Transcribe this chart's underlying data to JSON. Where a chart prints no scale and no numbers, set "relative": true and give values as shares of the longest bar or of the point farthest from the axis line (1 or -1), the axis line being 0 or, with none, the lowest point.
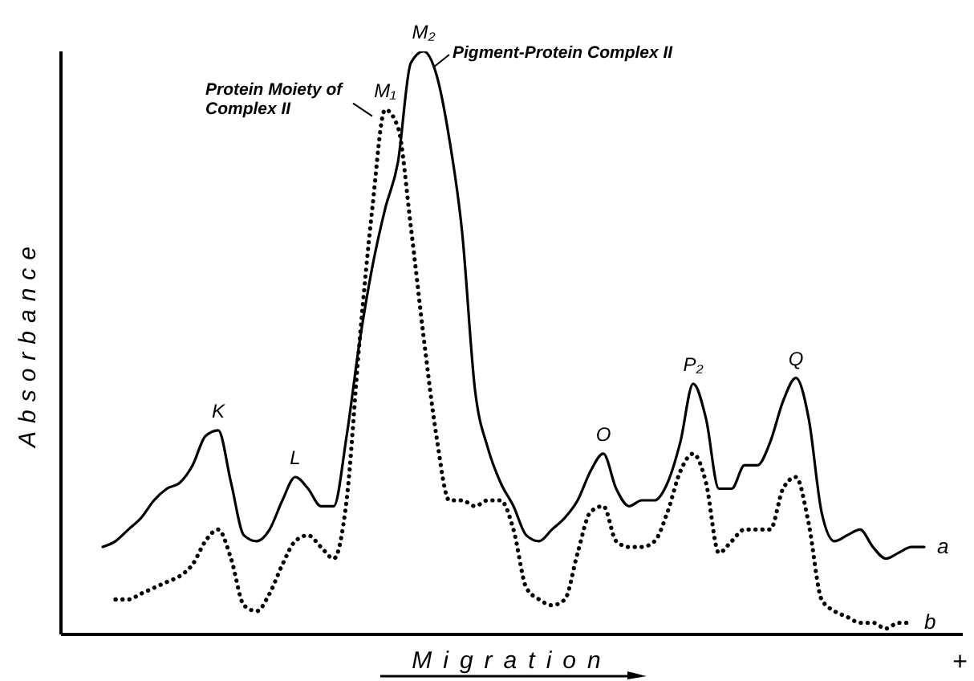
{
  "chart_data": {
    "type": "line",
    "relative": true,
    "xlabel": "Migration",
    "ylabel": "Absorbance",
    "categories": [
      null,
      null,
      null,
      null,
      null,
      null,
      null,
      null,
      null,
      null,
      null,
      null,
      null,
      null,
      null,
      null,
      null,
      null,
      null,
      null,
      null,
      null,
      null,
      null,
      null,
      null,
      null,
      null,
      null,
      null,
      null,
      null,
      null,
      null,
      null,
      null,
      null,
      null,
      null,
      null,
      null,
      null,
      null,
      null,
      null,
      null,
      null,
      null,
      null,
      null,
      null,
      null,
      null,
      null,
      null,
      null,
      null,
      null,
      null,
      null,
      null,
      null,
      null,
      null,
      null
    ],
    "series": [
      {
        "name": "a",
        "color": "#000000",
        "line_style": "solid",
        "values": [
          0.15,
          0.16,
          0.18,
          0.2,
          0.23,
          0.25,
          0.26,
          0.29,
          0.34,
          0.35,
          0.26,
          0.17,
          0.16,
          0.18,
          0.23,
          0.27,
          0.25,
          0.22,
          0.22,
          0.34,
          0.5,
          0.63,
          0.73,
          0.81,
          0.98,
          1.0,
          0.96,
          0.85,
          0.69,
          0.42,
          0.32,
          0.26,
          0.22,
          0.17,
          0.16,
          0.18,
          0.2,
          0.23,
          0.28,
          0.31,
          0.25,
          0.22,
          0.23,
          0.23,
          0.26,
          0.33,
          0.43,
          0.37,
          0.25,
          0.25,
          0.29,
          0.29,
          0.33,
          0.4,
          0.44,
          0.37,
          0.21,
          0.16,
          0.17,
          0.18,
          0.15,
          0.13,
          0.14,
          0.15,
          0.15
        ]
      },
      {
        "name": "b",
        "color": "#000000",
        "line_style": "dotted",
        "values": [
          null,
          0.06,
          0.06,
          0.07,
          0.08,
          0.09,
          0.1,
          0.12,
          0.16,
          0.18,
          0.13,
          0.05,
          0.04,
          0.07,
          0.12,
          0.16,
          0.17,
          0.15,
          0.13,
          0.23,
          0.5,
          0.73,
          0.9,
          0.87,
          0.7,
          0.51,
          0.34,
          0.23,
          0.23,
          0.22,
          0.23,
          0.23,
          0.18,
          0.08,
          0.06,
          0.05,
          0.06,
          0.14,
          0.21,
          0.22,
          0.16,
          0.15,
          0.15,
          0.16,
          0.21,
          0.28,
          0.31,
          0.26,
          0.14,
          0.16,
          0.18,
          0.18,
          0.18,
          0.25,
          0.27,
          0.19,
          0.06,
          0.04,
          0.03,
          0.02,
          0.02,
          0.01,
          0.02,
          0.02,
          null
        ]
      }
    ],
    "annotations": [
      "+",
      {
        "text": "K",
        "y": 0.35
      },
      {
        "text": "L",
        "y": 0.27
      },
      {
        "text": "M₁",
        "y": 0.9
      },
      "Protein Moiety of Complex II",
      {
        "text": "M₂",
        "y": 1.0
      },
      "Pigment-Protein Complex II",
      {
        "text": "O",
        "y": 0.31
      },
      {
        "text": "P₂",
        "y": 0.43
      },
      {
        "text": "Q",
        "y": 0.44
      }
    ]
  }
}
